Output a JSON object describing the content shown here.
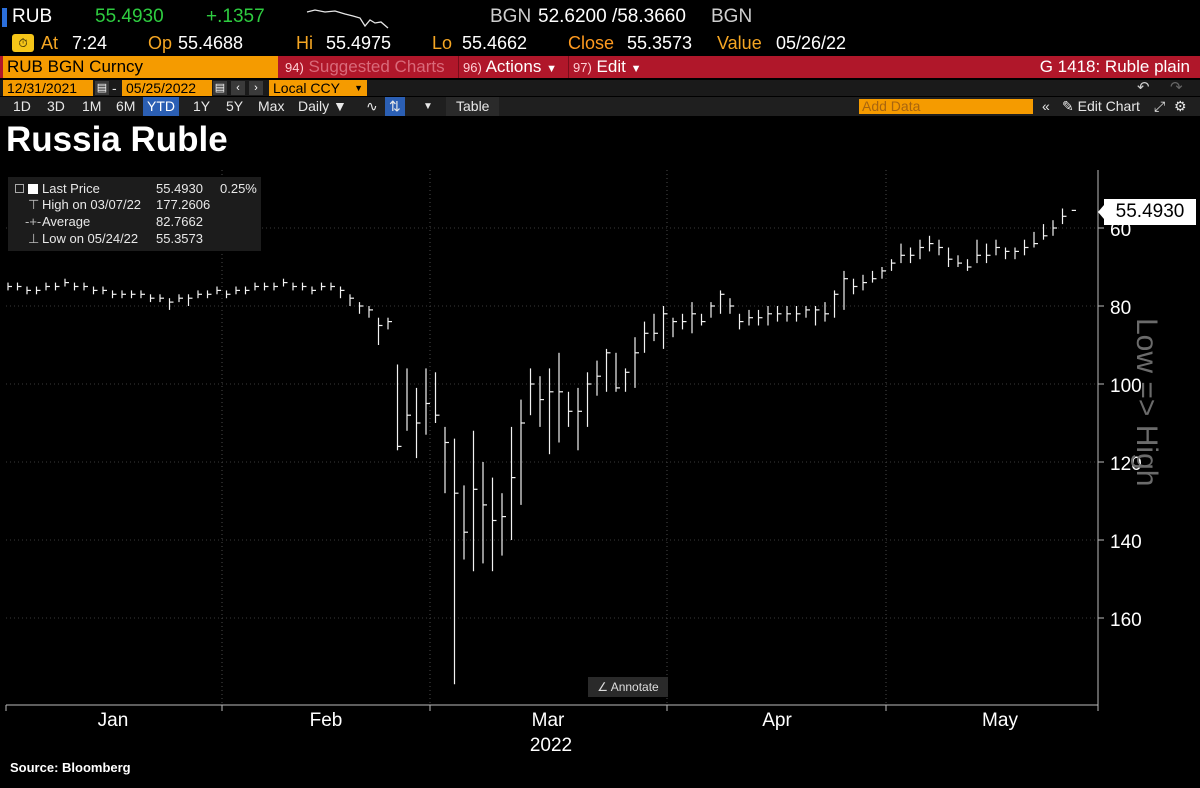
{
  "quote": {
    "ticker": "RUB",
    "last": "55.4930",
    "change": "+.1357",
    "bid_ccy": "BGN",
    "bid_ask": "52.6200 /58.3660",
    "ask_ccy": "BGN",
    "at_label": "At",
    "at_time": "7:24",
    "open_label": "Op",
    "open": "55.4688",
    "hi_label": "Hi",
    "hi": "55.4975",
    "lo_label": "Lo",
    "lo": "55.4662",
    "close_label": "Close",
    "close": "55.3573",
    "value_label": "Value",
    "value_date": "05/26/22"
  },
  "command_bar": {
    "security": "RUB BGN Curncy",
    "suggested_num": "94)",
    "suggested_label": "Suggested Charts",
    "actions_num": "96)",
    "actions_label": "Actions",
    "edit_num": "97)",
    "edit_label": "Edit",
    "right_label": "G 1418: Ruble plain"
  },
  "date_bar": {
    "start_date": "12/31/2021",
    "separator": "-",
    "end_date": "05/25/2022",
    "currency": "Local CCY"
  },
  "period_bar": {
    "periods": [
      "1D",
      "3D",
      "1M",
      "6M",
      "YTD",
      "1Y",
      "5Y",
      "Max"
    ],
    "selected": "YTD",
    "frequency": "Daily",
    "table_label": "Table",
    "add_data_placeholder": "Add Data",
    "edit_chart_label": "Edit Chart"
  },
  "chart_title": "Russia Ruble",
  "legend": {
    "rows": [
      {
        "label": "Last Price",
        "value": "55.4930",
        "pct": "0.25%"
      },
      {
        "label": "High on 03/07/22",
        "value": "177.2606",
        "pct": ""
      },
      {
        "label": "Average",
        "value": "82.7662",
        "pct": ""
      },
      {
        "label": "Low on 05/24/22",
        "value": "55.3573",
        "pct": ""
      }
    ]
  },
  "price_tag": "55.4930",
  "side_label": "Low => High",
  "annotate_label": "Annotate",
  "source": "Source: Bloomberg",
  "colors": {
    "amber": "#f5a623",
    "green": "#2ecc40",
    "red_bar": "#b0172a",
    "orange_field": "#f59b00",
    "selected_tab": "#2b5fb4"
  },
  "chart_data": {
    "type": "bar",
    "style": "ohlc",
    "y_axis": {
      "ticks": [
        60,
        80,
        100,
        120,
        140,
        160
      ],
      "inverted": true,
      "side": "right",
      "range": [
        50,
        177
      ]
    },
    "x_ticks": [
      "Jan",
      "Feb",
      "Mar",
      "Apr",
      "May"
    ],
    "x_year": "2022",
    "grid": true,
    "series": [
      {
        "values": [
          [
            75,
            74,
            76
          ],
          [
            75,
            74,
            76
          ],
          [
            76,
            75,
            77
          ],
          [
            76,
            75,
            77
          ],
          [
            75,
            74,
            76
          ],
          [
            75,
            74,
            76
          ],
          [
            74,
            73,
            75
          ],
          [
            75,
            74,
            76
          ],
          [
            75,
            74,
            76
          ],
          [
            76,
            75,
            77
          ],
          [
            76,
            75,
            77
          ],
          [
            77,
            76,
            78
          ],
          [
            77,
            76,
            78
          ],
          [
            77,
            76,
            78
          ],
          [
            77,
            76,
            78
          ],
          [
            78,
            77,
            79
          ],
          [
            78,
            77,
            79
          ],
          [
            79,
            78,
            81
          ],
          [
            78,
            77,
            79
          ],
          [
            78,
            77,
            80
          ],
          [
            77,
            76,
            78
          ],
          [
            77,
            76,
            78
          ],
          [
            76,
            75,
            77
          ],
          [
            77,
            76,
            78
          ],
          [
            76,
            75,
            77
          ],
          [
            76,
            75,
            77
          ],
          [
            75,
            74,
            76
          ],
          [
            75,
            74,
            76
          ],
          [
            75,
            74,
            76
          ],
          [
            74,
            73,
            75
          ],
          [
            75,
            74,
            76
          ],
          [
            75,
            74,
            76
          ],
          [
            76,
            75,
            77
          ],
          [
            75,
            74,
            76
          ],
          [
            75,
            74,
            76
          ],
          [
            76,
            75,
            78
          ],
          [
            78,
            77,
            80
          ],
          [
            80,
            79,
            82
          ],
          [
            81,
            80,
            83
          ],
          [
            85,
            83,
            90
          ],
          [
            84,
            83,
            86
          ],
          [
            116,
            95,
            117
          ],
          [
            108,
            96,
            112
          ],
          [
            110,
            101,
            119
          ],
          [
            105,
            96,
            113
          ],
          [
            108,
            97,
            110
          ],
          [
            115,
            111,
            128
          ],
          [
            128,
            114,
            177
          ],
          [
            138,
            126,
            145
          ],
          [
            127,
            112,
            148
          ],
          [
            131,
            120,
            146
          ],
          [
            135,
            124,
            148
          ],
          [
            134,
            128,
            144
          ],
          [
            124,
            111,
            140
          ],
          [
            110,
            104,
            131
          ],
          [
            100,
            96,
            108
          ],
          [
            104,
            98,
            111
          ],
          [
            102,
            96,
            118
          ],
          [
            102,
            92,
            115
          ],
          [
            107,
            102,
            111
          ],
          [
            107,
            101,
            117
          ],
          [
            100,
            97,
            111
          ],
          [
            98,
            94,
            103
          ],
          [
            92,
            91,
            102
          ],
          [
            101,
            92,
            102
          ],
          [
            97,
            96,
            102
          ],
          [
            92,
            88,
            101
          ],
          [
            87,
            84,
            92
          ],
          [
            87,
            82,
            89
          ],
          [
            82,
            80,
            91
          ],
          [
            84,
            83,
            88
          ],
          [
            84,
            82,
            86
          ],
          [
            82,
            79,
            87
          ],
          [
            84,
            82,
            85
          ],
          [
            80,
            79,
            83
          ],
          [
            77,
            76,
            82
          ],
          [
            80,
            78,
            82
          ],
          [
            84,
            82,
            86
          ],
          [
            83,
            81,
            85
          ],
          [
            83,
            81,
            85
          ],
          [
            82,
            80,
            85
          ],
          [
            82,
            80,
            84
          ],
          [
            82,
            80,
            84
          ],
          [
            82,
            80,
            84
          ],
          [
            81,
            80,
            83
          ],
          [
            81,
            80,
            85
          ],
          [
            82,
            79,
            84
          ],
          [
            77,
            76,
            83
          ],
          [
            73,
            71,
            81
          ],
          [
            75,
            73,
            77
          ],
          [
            74,
            72,
            76
          ],
          [
            73,
            71,
            74
          ],
          [
            71,
            70,
            73
          ],
          [
            69,
            68,
            71
          ],
          [
            67,
            64,
            69
          ],
          [
            67,
            65,
            69
          ],
          [
            65,
            63,
            68
          ],
          [
            64,
            62,
            66
          ],
          [
            65,
            63,
            67
          ],
          [
            68,
            65,
            70
          ],
          [
            69,
            67,
            70
          ],
          [
            70,
            68,
            71
          ],
          [
            67,
            63,
            69
          ],
          [
            67,
            64,
            69
          ],
          [
            65,
            63,
            67
          ],
          [
            66,
            65,
            68
          ],
          [
            66,
            65,
            68
          ],
          [
            65,
            63,
            67
          ],
          [
            64,
            61,
            65
          ],
          [
            62,
            59,
            63
          ],
          [
            60,
            58,
            62
          ],
          [
            57,
            55,
            59
          ],
          [
            55.49,
            55.36,
            55.5
          ]
        ]
      }
    ]
  }
}
